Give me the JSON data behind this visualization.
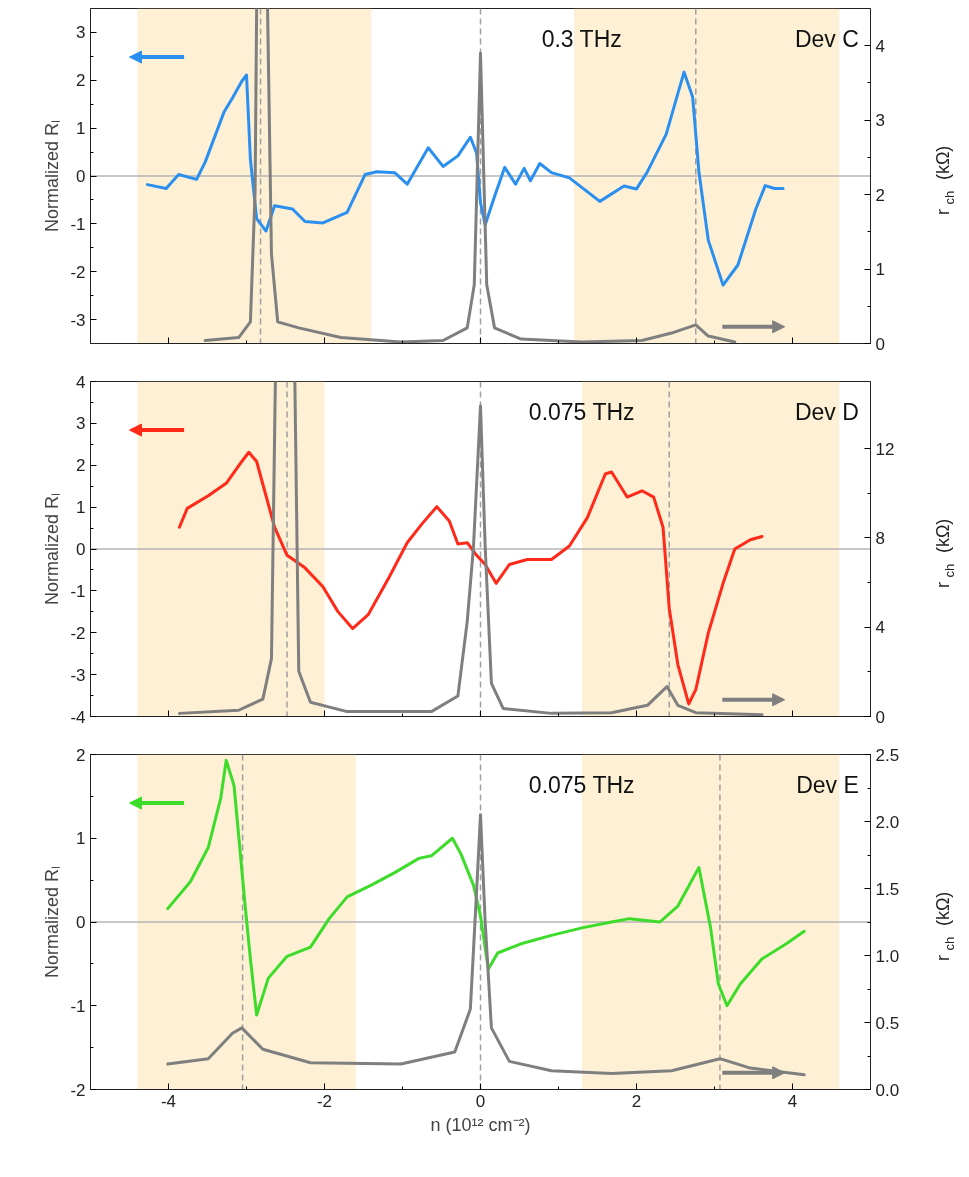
{
  "chart_data": [
    {
      "type": "line",
      "xlim": [
        -5,
        5
      ],
      "xticks": [
        -4,
        -2,
        0,
        2,
        4
      ],
      "ylim": [
        -3.5,
        3.5
      ],
      "yticks": [
        -3,
        -2,
        -1,
        0,
        1,
        2,
        3
      ],
      "y2lim": [
        0,
        4.5
      ],
      "y2ticks": [
        0,
        1,
        2,
        3,
        4
      ],
      "ylabel": "Normalized Rₗ",
      "y2label": "r$_{ch}$ (kΩ)",
      "tick_labels": "y",
      "annotations": [
        "0.3 THz",
        "Dev C"
      ],
      "series": [
        {
          "color": "#2b8ff0",
          "x": [
            -4.27,
            -4.03,
            -3.87,
            -3.64,
            -3.53,
            -3.29,
            -3.18,
            -3.06,
            -3.0,
            -2.95,
            -2.87,
            -2.75,
            -2.64,
            -2.41,
            -2.25,
            -2.02,
            -1.71,
            -1.48,
            -1.33,
            -1.1,
            -0.94,
            -0.67,
            -0.48,
            -0.29,
            -0.13,
            -0.05,
            0.0,
            0.06,
            0.18,
            0.31,
            0.45,
            0.56,
            0.64,
            0.76,
            0.91,
            1.14,
            1.53,
            1.84,
            2.0,
            2.14,
            2.38,
            2.53,
            2.61,
            2.72,
            2.8,
            2.92,
            3.11,
            3.3,
            3.53,
            3.65,
            3.77,
            3.88
          ],
          "values": [
            -0.18,
            -0.26,
            0.03,
            -0.07,
            0.29,
            1.33,
            1.63,
            1.98,
            2.11,
            0.35,
            -0.89,
            -1.15,
            -0.62,
            -0.69,
            -0.95,
            -0.98,
            -0.76,
            0.03,
            0.09,
            0.07,
            -0.17,
            0.59,
            0.2,
            0.42,
            0.81,
            0.48,
            -0.56,
            -1.02,
            -0.43,
            0.18,
            -0.17,
            0.16,
            -0.1,
            0.26,
            0.07,
            -0.04,
            -0.53,
            -0.21,
            -0.27,
            0.09,
            0.87,
            1.72,
            2.17,
            1.65,
            0.09,
            -1.34,
            -2.28,
            -1.86,
            -0.69,
            -0.2,
            -0.26,
            -0.26
          ]
        },
        {
          "color": "#7f7f7f",
          "axis": "y2",
          "x": [
            -3.53,
            -3.1,
            -2.95,
            -2.89,
            -2.87,
            -2.8,
            -2.73,
            -2.68,
            -2.6,
            -2.33,
            -1.79,
            -1.02,
            -0.48,
            -0.17,
            -0.08,
            0,
            0.08,
            0.18,
            0.52,
            1.3,
            2.07,
            2.45,
            2.76,
            2.92,
            3.26
          ],
          "values": [
            0.04,
            0.08,
            0.29,
            2.03,
            4.5,
            null,
            4.5,
            1.2,
            0.29,
            0.21,
            0.08,
            0.02,
            0.04,
            0.21,
            0.79,
            3.9,
            0.79,
            0.21,
            0.06,
            0.02,
            0.04,
            0.14,
            0.25,
            0.1,
            0.02
          ]
        }
      ],
      "ref_lines": [
        {
          "axis": "y",
          "value": 0,
          "color": "#b4b4b4",
          "line_style": "solid"
        },
        {
          "axis": "x",
          "value": -2.82,
          "color": "#a0a0a0",
          "line_style": "dashed"
        },
        {
          "axis": "x",
          "value": 0,
          "color": "#a0a0a0",
          "line_style": "dashed"
        },
        {
          "axis": "x",
          "value": 2.76,
          "color": "#a0a0a0",
          "line_style": "dashed"
        }
      ],
      "bands": [
        {
          "axis": "x",
          "from": -4.4,
          "to": -1.4,
          "color": "#fbe3b0"
        },
        {
          "axis": "x",
          "from": 1.2,
          "to": 4.6,
          "color": "#fbe3b0"
        }
      ]
    },
    {
      "type": "line",
      "xlim": [
        -5,
        5
      ],
      "xticks": [
        -4,
        -2,
        0,
        2,
        4
      ],
      "ylim": [
        -4,
        4
      ],
      "yticks": [
        -4,
        -3,
        -2,
        -1,
        0,
        1,
        2,
        3,
        4
      ],
      "y2lim": [
        0,
        15
      ],
      "y2ticks": [
        0,
        4,
        8,
        12
      ],
      "ylabel": "Normalized Rₗ",
      "y2label": "r$_{ch}$ (kΩ)",
      "tick_labels": "y",
      "annotations": [
        "0.075 THz",
        "Dev D"
      ],
      "series": [
        {
          "color": "#ff2a1a",
          "x": [
            -3.86,
            -3.76,
            -3.49,
            -3.26,
            -3.06,
            -2.97,
            -2.87,
            -2.64,
            -2.48,
            -2.25,
            -2.02,
            -1.83,
            -1.64,
            -1.44,
            -1.17,
            -0.94,
            -0.75,
            -0.56,
            -0.4,
            -0.29,
            -0.17,
            -0.05,
            0.06,
            0.2,
            0.37,
            0.6,
            0.91,
            1.14,
            1.37,
            1.6,
            1.68,
            1.88,
            2.07,
            2.22,
            2.34,
            2.42,
            2.53,
            2.67,
            2.76,
            2.92,
            3.11,
            3.26,
            3.46,
            3.61
          ],
          "values": [
            0.52,
            0.97,
            1.27,
            1.57,
            2.09,
            2.31,
            2.09,
            0.52,
            -0.15,
            -0.45,
            -0.9,
            -1.49,
            -1.9,
            -1.57,
            -0.67,
            0.15,
            0.6,
            1.01,
            0.67,
            0.12,
            0.15,
            -0.15,
            -0.37,
            -0.82,
            -0.37,
            -0.25,
            -0.25,
            0.07,
            0.75,
            1.79,
            1.84,
            1.24,
            1.39,
            1.24,
            0.52,
            -1.42,
            -2.76,
            -3.7,
            -3.36,
            -2.01,
            -0.82,
            0.0,
            0.22,
            0.3
          ]
        },
        {
          "color": "#7f7f7f",
          "axis": "y2",
          "x": [
            -3.86,
            -3.1,
            -2.79,
            -2.68,
            -2.63,
            -2.5,
            -2.38,
            -2.33,
            -2.18,
            -1.71,
            -0.63,
            -0.29,
            -0.17,
            -0.09,
            0,
            0.06,
            0.14,
            0.29,
            0.91,
            1.68,
            2.14,
            2.39,
            2.53,
            2.76,
            3.61
          ],
          "values": [
            0.14,
            0.28,
            0.78,
            2.59,
            15,
            null,
            15,
            2.03,
            0.64,
            0.22,
            0.22,
            0.92,
            4.26,
            7.6,
            13.9,
            7.6,
            1.48,
            0.36,
            0.14,
            0.17,
            0.5,
            1.34,
            0.5,
            0.17,
            0.08
          ]
        }
      ],
      "ref_lines": [
        {
          "axis": "y",
          "value": 0,
          "color": "#b4b4b4",
          "line_style": "solid"
        },
        {
          "axis": "x",
          "value": -2.48,
          "color": "#a0a0a0",
          "line_style": "dashed"
        },
        {
          "axis": "x",
          "value": 0,
          "color": "#a0a0a0",
          "line_style": "dashed"
        },
        {
          "axis": "x",
          "value": 2.42,
          "color": "#a0a0a0",
          "line_style": "dashed"
        }
      ],
      "bands": [
        {
          "axis": "x",
          "from": -4.4,
          "to": -2.0,
          "color": "#fbe3b0"
        },
        {
          "axis": "x",
          "from": 1.3,
          "to": 4.6,
          "color": "#fbe3b0"
        }
      ]
    },
    {
      "type": "line",
      "xlim": [
        -5,
        5
      ],
      "xticks": [
        -4,
        -2,
        0,
        2,
        4
      ],
      "ylim": [
        -2,
        2
      ],
      "yticks": [
        -2,
        -1,
        0,
        1,
        2
      ],
      "y2lim": [
        0,
        2.5
      ],
      "y2ticks": [
        {
          "value": 0,
          "label": "0.0"
        },
        {
          "value": 0.5,
          "label": "0.5"
        },
        {
          "value": 1,
          "label": "1.0"
        },
        {
          "value": 1.5,
          "label": "1.5"
        },
        {
          "value": 2,
          "label": "2.0"
        },
        {
          "value": 2.5,
          "label": "2.5"
        }
      ],
      "xlabel": "n (10¹² cm⁻²)",
      "ylabel": "Normalized Rₗ",
      "y2label": "r$_{ch}$ (kΩ)",
      "annotations": [
        "0.075 THz",
        "Dev E"
      ],
      "series": [
        {
          "color": "#3ddc2a",
          "x": [
            -4.01,
            -3.72,
            -3.49,
            -3.33,
            -3.26,
            -3.16,
            -3.02,
            -2.95,
            -2.87,
            -2.72,
            -2.48,
            -2.18,
            -1.94,
            -1.71,
            -1.4,
            -1.1,
            -0.79,
            -0.63,
            -0.36,
            -0.25,
            -0.09,
            0.0,
            0.1,
            0.22,
            0.52,
            0.91,
            1.3,
            1.68,
            1.91,
            2.3,
            2.53,
            2.8,
            2.95,
            3.05,
            3.16,
            3.33,
            3.61,
            3.92,
            4.15
          ],
          "values": [
            0.16,
            0.48,
            0.89,
            1.48,
            1.93,
            1.63,
            0.22,
            -0.44,
            -1.11,
            -0.67,
            -0.41,
            -0.3,
            0.04,
            0.3,
            0.44,
            0.59,
            0.76,
            0.79,
            1.0,
            0.81,
            0.44,
            0.07,
            -0.56,
            -0.37,
            -0.26,
            -0.16,
            -0.07,
            0.0,
            0.04,
            0.0,
            0.19,
            0.65,
            -0.07,
            -0.74,
            -1.0,
            -0.74,
            -0.44,
            -0.26,
            -0.11
          ]
        },
        {
          "color": "#7f7f7f",
          "axis": "y2",
          "x": [
            -4.01,
            -3.49,
            -3.18,
            -3.06,
            -2.79,
            -2.18,
            -1.02,
            -0.33,
            -0.13,
            -0.05,
            0.0,
            0.06,
            0.14,
            0.37,
            0.91,
            1.68,
            2.45,
            3.07,
            3.46,
            4.15
          ],
          "values": [
            0.19,
            0.23,
            0.42,
            0.46,
            0.3,
            0.2,
            0.19,
            0.28,
            0.6,
            1.48,
            2.05,
            1.25,
            0.46,
            0.21,
            0.14,
            0.12,
            0.14,
            0.23,
            0.16,
            0.11
          ]
        }
      ],
      "ref_lines": [
        {
          "axis": "y",
          "value": 0,
          "color": "#b4b4b4",
          "line_style": "solid"
        },
        {
          "axis": "x",
          "value": -3.05,
          "color": "#a0a0a0",
          "line_style": "dashed"
        },
        {
          "axis": "x",
          "value": 0,
          "color": "#a0a0a0",
          "line_style": "dashed"
        },
        {
          "axis": "x",
          "value": 3.07,
          "color": "#a0a0a0",
          "line_style": "dashed"
        }
      ],
      "bands": [
        {
          "axis": "x",
          "from": -4.4,
          "to": -1.6,
          "color": "#fbe3b0"
        },
        {
          "axis": "x",
          "from": 1.3,
          "to": 4.6,
          "color": "#fbe3b0"
        }
      ]
    }
  ]
}
